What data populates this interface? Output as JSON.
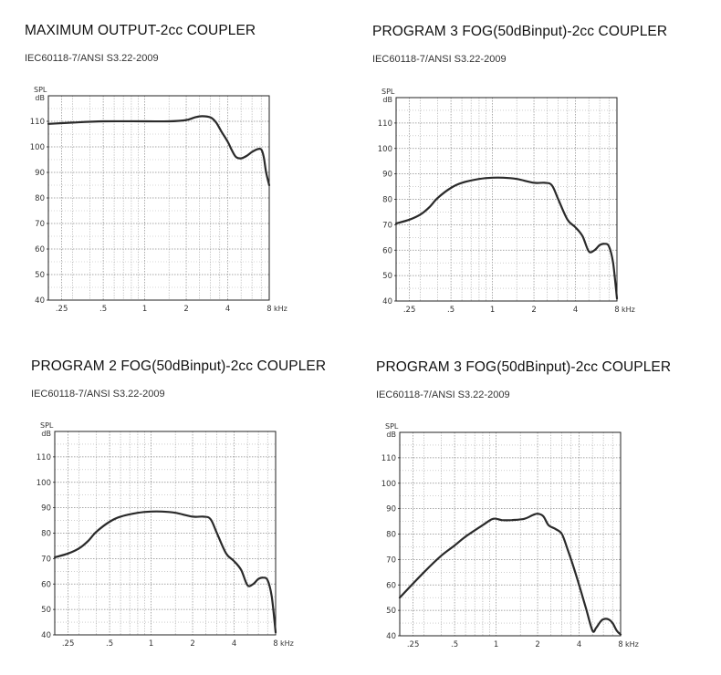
{
  "chart_data": [
    {
      "type": "line",
      "title": "MAXIMUM OUTPUT-2cc COUPLER",
      "subtitle": "IEC60118-7/ANSI S3.22-2009",
      "ylabel": [
        "SPL",
        "dB"
      ],
      "xunit": "kHz",
      "x_ticks": [
        ".25",
        ".5",
        "1",
        "2",
        "4",
        "8"
      ],
      "y_ticks": [
        "40",
        "50",
        "60",
        "70",
        "80",
        "90",
        "100",
        "110"
      ],
      "ylim": [
        40,
        120
      ],
      "xlim": [
        0.2,
        8
      ],
      "grid": true,
      "series": [
        {
          "x": [
            0.2,
            0.3,
            0.5,
            1.0,
            1.5,
            2.0,
            2.3,
            2.6,
            3.0,
            3.3,
            3.6,
            4.0,
            4.3,
            4.6,
            5.0,
            5.5,
            6.0,
            6.5,
            7.0,
            7.3,
            7.6,
            8.0
          ],
          "y": [
            109,
            109.5,
            110,
            110,
            110,
            110.5,
            111.5,
            112,
            111.5,
            109.5,
            106,
            102,
            98.5,
            96,
            95.5,
            96.5,
            98,
            99,
            99,
            96,
            90,
            85
          ]
        }
      ]
    },
    {
      "type": "line",
      "title": "PROGRAM 3 FOG(50dBinput)-2cc COUPLER",
      "subtitle": "IEC60118-7/ANSI S3.22-2009",
      "ylabel": [
        "SPL",
        "dB"
      ],
      "xunit": "kHz",
      "x_ticks": [
        ".25",
        ".5",
        "1",
        "2",
        "4",
        "8"
      ],
      "y_ticks": [
        "40",
        "50",
        "60",
        "70",
        "80",
        "90",
        "100",
        "110"
      ],
      "ylim": [
        40,
        120
      ],
      "xlim": [
        0.2,
        8
      ],
      "grid": true,
      "series": [
        {
          "x": [
            0.2,
            0.25,
            0.3,
            0.35,
            0.4,
            0.5,
            0.6,
            0.8,
            1.0,
            1.2,
            1.5,
            2.0,
            2.4,
            2.7,
            3.0,
            3.5,
            4.0,
            4.5,
            5.0,
            5.5,
            6.0,
            6.5,
            7.0,
            7.5,
            8.0
          ],
          "y": [
            70.5,
            72,
            74,
            77,
            80.5,
            84.5,
            86.5,
            88,
            88.5,
            88.5,
            88,
            86.5,
            86.5,
            85.5,
            80,
            72,
            69,
            65.5,
            59.5,
            60,
            62,
            62.5,
            61.5,
            55,
            41
          ]
        }
      ]
    },
    {
      "type": "line",
      "title": "PROGRAM 2 FOG(50dBinput)-2cc COUPLER",
      "subtitle": "IEC60118-7/ANSI S3.22-2009",
      "ylabel": [
        "SPL",
        "dB"
      ],
      "xunit": "kHz",
      "x_ticks": [
        ".25",
        ".5",
        "1",
        "2",
        "4",
        "8"
      ],
      "y_ticks": [
        "40",
        "50",
        "60",
        "70",
        "80",
        "90",
        "100",
        "110"
      ],
      "ylim": [
        40,
        120
      ],
      "xlim": [
        0.2,
        8
      ],
      "grid": true,
      "series": [
        {
          "x": [
            0.2,
            0.25,
            0.3,
            0.35,
            0.4,
            0.5,
            0.6,
            0.8,
            1.0,
            1.2,
            1.5,
            2.0,
            2.4,
            2.7,
            3.0,
            3.5,
            4.0,
            4.5,
            5.0,
            5.5,
            6.0,
            6.5,
            7.0,
            7.5,
            8.0
          ],
          "y": [
            70.5,
            72,
            74,
            77,
            80.5,
            84.5,
            86.5,
            88,
            88.5,
            88.5,
            88,
            86.5,
            86.5,
            85.5,
            80,
            72,
            69,
            65.5,
            59.5,
            60,
            62,
            62.5,
            61.5,
            55,
            41
          ]
        }
      ]
    },
    {
      "type": "line",
      "title": "PROGRAM 3 FOG(50dBinput)-2cc COUPLER",
      "subtitle": "IEC60118-7/ANSI S3.22-2009",
      "ylabel": [
        "SPL",
        "dB"
      ],
      "xunit": "kHz",
      "x_ticks": [
        ".25",
        ".5",
        "1",
        "2",
        "4",
        "8"
      ],
      "y_ticks": [
        "40",
        "50",
        "60",
        "70",
        "80",
        "90",
        "100",
        "110"
      ],
      "ylim": [
        40,
        120
      ],
      "xlim": [
        0.2,
        8
      ],
      "grid": true,
      "series": [
        {
          "x": [
            0.2,
            0.3,
            0.4,
            0.5,
            0.6,
            0.8,
            0.95,
            1.1,
            1.3,
            1.6,
            1.85,
            2.0,
            2.2,
            2.4,
            2.7,
            3.0,
            3.3,
            3.6,
            4.0,
            4.5,
            5.0,
            5.3,
            5.7,
            6.0,
            6.5,
            7.0,
            7.5,
            8.0
          ],
          "y": [
            55,
            65,
            71.5,
            75.5,
            79,
            83.5,
            86,
            85.5,
            85.5,
            86,
            87.5,
            88,
            87,
            83.5,
            82,
            80,
            74,
            68,
            60,
            50.5,
            42,
            43,
            45.5,
            46.5,
            46.5,
            45,
            42,
            40.5
          ]
        }
      ]
    }
  ]
}
